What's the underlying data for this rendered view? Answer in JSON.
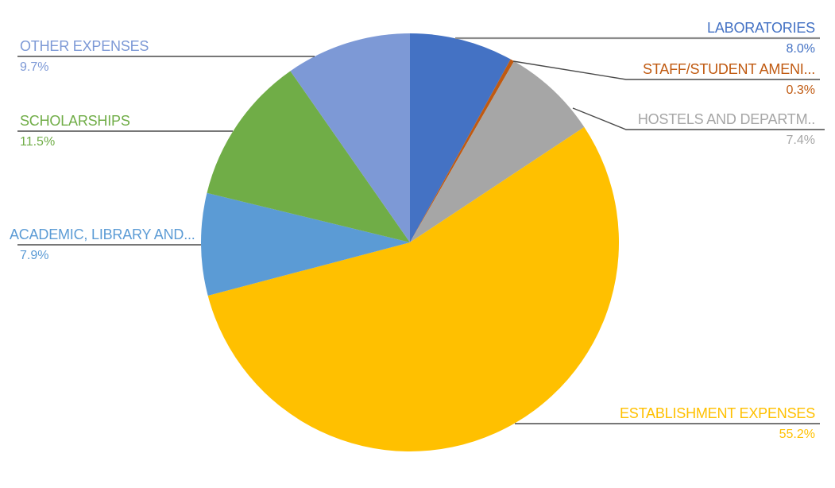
{
  "chart": {
    "background_color": "#FFFFFF",
    "accent_colors": {
      "blue": "#4472C4",
      "dark_orange": "#C05A11",
      "gray": "#A6A6A6",
      "yellow": "#FFC000",
      "light_blue": "#5B9BD5",
      "green": "#70AD47",
      "periwinkle": "#7D99D6"
    }
  },
  "chart_data": {
    "type": "pie",
    "title": "",
    "unit": "percent",
    "direction": "clockwise",
    "start_angle_deg": 0,
    "legend_position": "none",
    "label_style": "callout-name-with-underline-and-percentage",
    "slices": [
      {
        "key": "laboratories",
        "label": "LABORATORIES",
        "value": 8.0,
        "pct_text": "8.0%",
        "color": "#4472C4"
      },
      {
        "key": "staff-student-amenities",
        "label": "STAFF/STUDENT AMENI...",
        "value": 0.3,
        "pct_text": "0.3%",
        "color": "#C05A11"
      },
      {
        "key": "hostels-and-departments",
        "label": "HOSTELS AND DEPARTM..",
        "value": 7.4,
        "pct_text": "7.4%",
        "color": "#A6A6A6"
      },
      {
        "key": "establishment-expenses",
        "label": "ESTABLISHMENT EXPENSES",
        "value": 55.2,
        "pct_text": "55.2%",
        "color": "#FFC000"
      },
      {
        "key": "academic-library",
        "label": "ACADEMIC, LIBRARY AND...",
        "value": 7.9,
        "pct_text": "7.9%",
        "color": "#5B9BD5"
      },
      {
        "key": "scholarships",
        "label": "SCHOLARSHIPS",
        "value": 11.5,
        "pct_text": "11.5%",
        "color": "#70AD47"
      },
      {
        "key": "other-expenses",
        "label": "OTHER EXPENSES",
        "value": 9.7,
        "pct_text": "9.7%",
        "color": "#7D99D6"
      }
    ]
  }
}
